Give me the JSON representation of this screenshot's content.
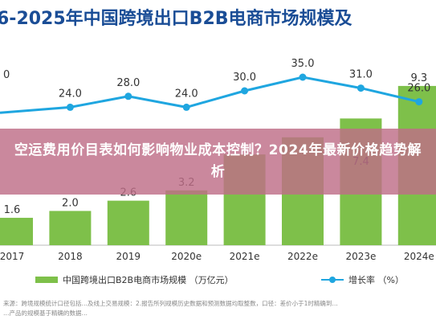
{
  "overlay_title": "空运费用价目表如何影响物业成本控制？2024年最新价格趋势解析",
  "chart_data": {
    "type": "bar",
    "title": "6-2025年中国跨境出口B2B电商市场规模及",
    "categories": [
      "2017",
      "2018",
      "2019",
      "2020e",
      "2021e",
      "2022e",
      "2023e",
      "2024e"
    ],
    "series": [
      {
        "name": "中国跨境出口B2B电商市场规模 （万亿元）",
        "type": "bar",
        "values": [
          1.6,
          2.0,
          2.6,
          3.2,
          null,
          null,
          null,
          9.3
        ]
      },
      {
        "name": "增长率 （%）",
        "type": "line",
        "values": [
          null,
          24.0,
          28.0,
          24.0,
          30.0,
          35.0,
          31.0,
          26.0
        ]
      }
    ],
    "partial_labels": [
      "0",
      "7.4"
    ],
    "colors": {
      "bar": "#7ec04a",
      "line": "#1fa6e0",
      "title": "#1a4d96"
    },
    "source_lines": [
      "来源：跨境规模统计口径包括…及线上交易规模：2.报告所列规模历史数据和预测数据均取整数，口径：差价小于1时精确到…",
      "…产品的规模基于精确的数据…"
    ]
  }
}
